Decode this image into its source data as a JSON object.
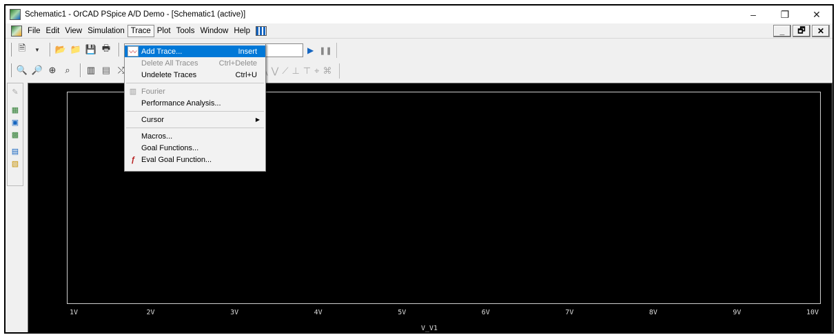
{
  "window": {
    "title": "Schematic1 - OrCAD PSpice A/D Demo  - [Schematic1 (active)]",
    "minimize_glyph": "–",
    "restore_glyph": "❐",
    "close_glyph": "✕"
  },
  "menubar": {
    "items": [
      {
        "label": "File"
      },
      {
        "label": "Edit"
      },
      {
        "label": "View"
      },
      {
        "label": "Simulation"
      },
      {
        "label": "Trace"
      },
      {
        "label": "Plot"
      },
      {
        "label": "Tools"
      },
      {
        "label": "Window"
      },
      {
        "label": "Help"
      }
    ],
    "active": "Trace",
    "mdi_min": "_",
    "mdi_restore": "🗗",
    "mdi_close": "✕"
  },
  "trace_menu": {
    "items": [
      {
        "label": "Add Trace...",
        "accel": "Insert",
        "highlighted": true,
        "icon": "add-trace-icon"
      },
      {
        "label": "Delete All Traces",
        "accel": "Ctrl+Delete",
        "disabled": true
      },
      {
        "label": "Undelete Traces",
        "accel": "Ctrl+U"
      },
      {
        "label": "Fourier",
        "disabled": true,
        "icon": "fourier-icon"
      },
      {
        "label": "Performance Analysis..."
      },
      {
        "label": "Cursor",
        "submenu": true
      },
      {
        "label": "Macros..."
      },
      {
        "label": "Goal Functions..."
      },
      {
        "label": "Eval Goal Function...",
        "icon": "eval-goal-icon"
      }
    ]
  },
  "plot": {
    "background": "#000000",
    "x_ticks": [
      "1V",
      "2V",
      "3V",
      "4V",
      "5V",
      "6V",
      "7V",
      "8V",
      "9V",
      "10V"
    ],
    "x_title": "V_V1"
  },
  "colors": {
    "accent": "#0078d7",
    "plot_bg": "#000000",
    "plot_frame": "#cfcfcf"
  }
}
